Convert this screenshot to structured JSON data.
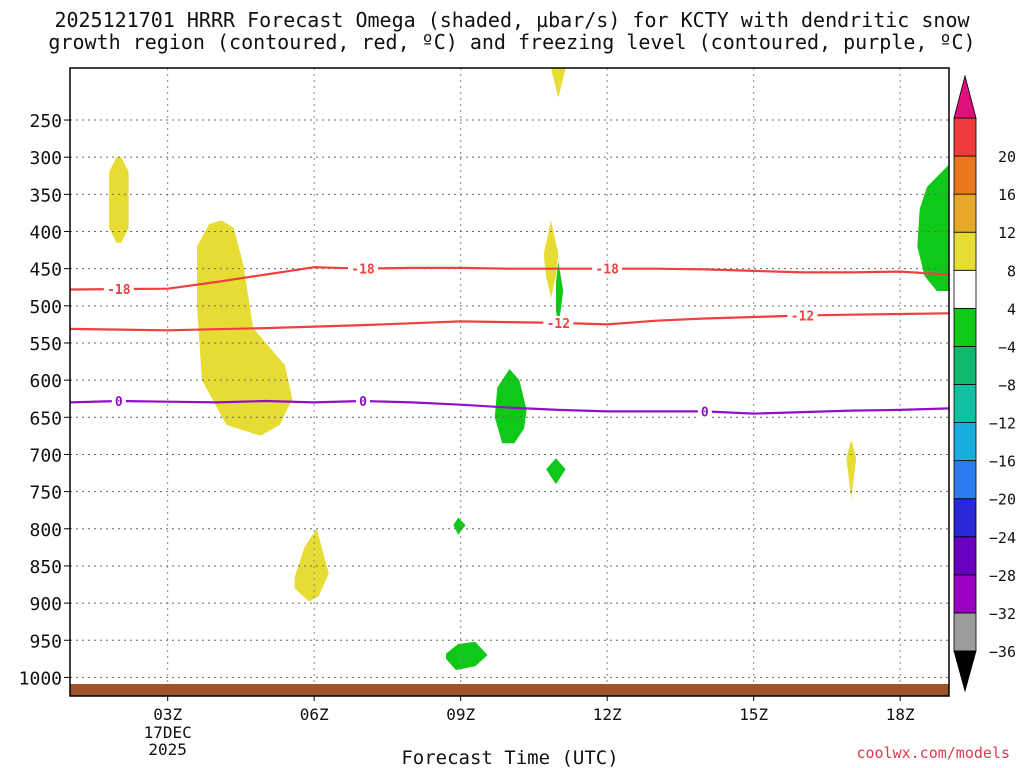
{
  "title_line1": "2025121701 HRRR Forecast Omega (shaded, µbar/s) for KCTY with dendritic snow",
  "title_line2": "growth region (contoured, red, ºC) and freezing level (contoured, purple, ºC)",
  "credit": "coolwx.com/models",
  "colors": {
    "dendritic_contour": "#f04040",
    "freezing_contour": "#9010c8",
    "ground": "#a0522d",
    "frame": "#000000"
  },
  "chart_data": {
    "type": "heatmap",
    "xlabel": "Forecast Time (UTC)",
    "ylabel": "",
    "x_unit": "forecast hour (0 = 2025-12-17 01Z)",
    "xlim": [
      0,
      18
    ],
    "x_ticks": [
      {
        "hour": 2,
        "label": "03Z",
        "sub": [
          "17DEC",
          "2025"
        ]
      },
      {
        "hour": 5,
        "label": "06Z"
      },
      {
        "hour": 8,
        "label": "09Z"
      },
      {
        "hour": 11,
        "label": "12Z"
      },
      {
        "hour": 14,
        "label": "15Z"
      },
      {
        "hour": 17,
        "label": "18Z"
      }
    ],
    "y_unit": "hPa",
    "ylim": [
      1025,
      180
    ],
    "y_ticks": [
      250,
      300,
      350,
      400,
      450,
      500,
      550,
      600,
      650,
      700,
      750,
      800,
      850,
      900,
      950,
      1000
    ],
    "colorbar": {
      "levels": [
        -36,
        -32,
        -28,
        -24,
        -20,
        -16,
        -12,
        -8,
        -4,
        4,
        8,
        12,
        16,
        20
      ],
      "colors": [
        "#9b9b9b",
        "#9a00bf",
        "#6a00bf",
        "#2828d8",
        "#2d7cf0",
        "#1aaee0",
        "#10c0a0",
        "#10b870",
        "#10c818",
        "#ffffff",
        "#e6dc33",
        "#e8a82a",
        "#e8781e",
        "#ee3c3c",
        "#e0107a"
      ],
      "extend_low_color": "#000000",
      "extend_high_color": "#e0107a"
    },
    "contours": [
      {
        "name": "dendritic -18C",
        "color": "#f04040",
        "label": "-18",
        "x": [
          0,
          2,
          3,
          4,
          5,
          6,
          7,
          8,
          9,
          10,
          11,
          12,
          13,
          14,
          15,
          16,
          17,
          18
        ],
        "y": [
          478,
          477,
          468,
          458,
          448,
          450,
          449,
          449,
          450,
          450,
          450,
          450,
          451,
          453,
          455,
          455,
          454,
          458
        ],
        "labels_at": [
          1,
          6,
          11
        ]
      },
      {
        "name": "dendritic -12C",
        "color": "#f04040",
        "label": "-12",
        "x": [
          0,
          2,
          4,
          6,
          8,
          10,
          11,
          12,
          13,
          14,
          15,
          16,
          17,
          18
        ],
        "y": [
          531,
          533,
          530,
          526,
          521,
          523,
          525,
          520,
          517,
          515,
          513,
          512,
          511,
          510
        ],
        "labels_at": [
          10,
          15
        ]
      },
      {
        "name": "freezing level 0C",
        "color": "#9010c8",
        "label": "0",
        "x": [
          0,
          1,
          2,
          3,
          4,
          5,
          6,
          7,
          8,
          9,
          10,
          11,
          12,
          13,
          14,
          15,
          16,
          17,
          18
        ],
        "y": [
          630,
          628,
          629,
          630,
          628,
          630,
          628,
          630,
          633,
          637,
          640,
          642,
          642,
          642,
          645,
          643,
          641,
          640,
          638
        ],
        "labels_at": [
          1,
          6,
          13
        ]
      }
    ],
    "regions": [
      {
        "value": 6,
        "color": "#e6dc33",
        "x": [
          0.8,
          0.95,
          1.05,
          1.2,
          1.2,
          1.05,
          0.95,
          0.8
        ],
        "y": [
          320,
          300,
          300,
          320,
          395,
          415,
          415,
          395
        ]
      },
      {
        "value": 6,
        "color": "#e6dc33",
        "x": [
          2.6,
          2.85,
          3.1,
          3.35,
          3.55,
          3.75,
          4.4,
          4.55,
          4.3,
          3.9,
          3.2,
          2.7,
          2.6
        ],
        "y": [
          420,
          390,
          385,
          395,
          445,
          530,
          580,
          625,
          660,
          675,
          660,
          600,
          500
        ]
      },
      {
        "value": 6,
        "color": "#e6dc33",
        "x": [
          4.6,
          4.8,
          5.05,
          5.3,
          5.1,
          4.9,
          4.6
        ],
        "y": [
          865,
          825,
          800,
          860,
          890,
          898,
          880
        ]
      },
      {
        "value": 6,
        "color": "#e6dc33",
        "x": [
          9.7,
          9.85,
          10.0,
          9.95,
          9.85,
          9.75
        ],
        "y": [
          430,
          385,
          430,
          460,
          490,
          460
        ]
      },
      {
        "value": 6,
        "color": "#e6dc33",
        "x": [
          9.85,
          10.0,
          10.15,
          10.0
        ],
        "y": [
          180,
          180,
          180,
          220
        ]
      },
      {
        "value": 6,
        "color": "#e6dc33",
        "x": [
          15.9,
          16.0,
          16.1,
          16.0
        ],
        "y": [
          705,
          680,
          705,
          760
        ]
      },
      {
        "value": -6,
        "color": "#10c818",
        "x": [
          8.75,
          9.0,
          9.2,
          9.35,
          9.3,
          9.1,
          8.85,
          8.7
        ],
        "y": [
          610,
          585,
          600,
          640,
          665,
          685,
          685,
          650
        ]
      },
      {
        "value": -6,
        "color": "#10c818",
        "x": [
          9.95,
          10.0,
          10.1,
          10.05,
          10.0,
          9.95
        ],
        "y": [
          470,
          440,
          480,
          505,
          530,
          505
        ]
      },
      {
        "value": -6,
        "color": "#10c818",
        "x": [
          9.75,
          9.95,
          10.15,
          9.95
        ],
        "y": [
          720,
          705,
          720,
          740
        ]
      },
      {
        "value": -6,
        "color": "#10c818",
        "x": [
          7.85,
          7.95,
          8.1,
          7.95
        ],
        "y": [
          795,
          785,
          795,
          808
        ]
      },
      {
        "value": -6,
        "color": "#10c818",
        "x": [
          7.7,
          7.95,
          8.3,
          8.55,
          8.3,
          7.9,
          7.7
        ],
        "y": [
          968,
          955,
          952,
          970,
          985,
          990,
          975
        ]
      },
      {
        "value": -6,
        "color": "#10c818",
        "x": [
          18.0,
          17.55,
          17.4,
          17.35,
          17.5,
          17.75,
          18.0
        ],
        "y": [
          310,
          340,
          370,
          420,
          460,
          480,
          480
        ]
      }
    ]
  }
}
